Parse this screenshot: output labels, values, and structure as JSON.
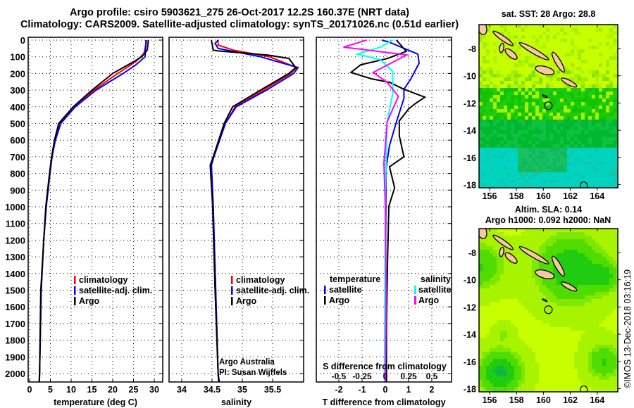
{
  "header": {
    "title_line1": "Argo profile: csiro 5903621_275 26-Oct-2017 12.2S 160.37E (NRT data)",
    "title_line2": "Climatology: CARS2009. Satellite-adjusted climatology: synTS_20171026.nc (0.51d earlier)"
  },
  "colors": {
    "argo": "#000000",
    "climatology": "#ff0000",
    "satellite": "#0000ff",
    "sal_satellite": "#00ffff",
    "sal_argo": "#ff00ff",
    "land": "#f8c8a0"
  },
  "chart_data": [
    {
      "type": "line",
      "title": "",
      "xlabel": "temperature (deg C)",
      "ylabel": "",
      "xlim": [
        -0.3,
        31.5
      ],
      "ylim": [
        2050,
        -17
      ],
      "xticks": [
        "0",
        "5",
        "10",
        "15",
        "20",
        "25",
        "30"
      ],
      "xtick_values": [
        0,
        5,
        10,
        15,
        20,
        25,
        30
      ],
      "yticks": [
        "0",
        "100",
        "200",
        "300",
        "400",
        "500",
        "600",
        "700",
        "800",
        "900",
        "1000",
        "1100",
        "1200",
        "1300",
        "1400",
        "1500",
        "1600",
        "1700",
        "1800",
        "1900",
        "2000"
      ],
      "ytick_values": [
        0,
        100,
        200,
        300,
        400,
        500,
        600,
        700,
        800,
        900,
        1000,
        1100,
        1200,
        1300,
        1400,
        1500,
        1600,
        1700,
        1800,
        1900,
        2000
      ],
      "grid": true,
      "legend_placement": "lower-right",
      "series": [
        {
          "name": "climatology",
          "color": "#ff0000",
          "points": [
            [
              0,
              28.2
            ],
            [
              80,
              27.5
            ],
            [
              130,
              25.5
            ],
            [
              200,
              21.2
            ],
            [
              300,
              15.5
            ],
            [
              400,
              10.5
            ],
            [
              500,
              7.2
            ],
            [
              600,
              6.1
            ],
            [
              700,
              5.4
            ],
            [
              800,
              4.9
            ],
            [
              1000,
              4.0
            ],
            [
              1200,
              3.4
            ],
            [
              1500,
              2.8
            ],
            [
              2000,
              2.4
            ],
            [
              2050,
              2.35
            ]
          ]
        },
        {
          "name": "satellite-adj. clim.",
          "color": "#0000ff",
          "points": [
            [
              0,
              28.0
            ],
            [
              100,
              27.8
            ],
            [
              150,
              25.5
            ],
            [
              200,
              22.5
            ],
            [
              300,
              16.0
            ],
            [
              400,
              11.0
            ],
            [
              500,
              7.5
            ],
            [
              600,
              6.2
            ],
            [
              700,
              5.4
            ],
            [
              800,
              4.9
            ],
            [
              1000,
              4.0
            ],
            [
              1200,
              3.4
            ],
            [
              1500,
              2.8
            ],
            [
              2000,
              2.4
            ],
            [
              2050,
              2.35
            ]
          ]
        },
        {
          "name": "Argo",
          "color": "#000000",
          "points": [
            [
              0,
              28.6
            ],
            [
              60,
              28.3
            ],
            [
              100,
              27.0
            ],
            [
              130,
              25.0
            ],
            [
              200,
              20.0
            ],
            [
              270,
              16.5
            ],
            [
              300,
              15.0
            ],
            [
              400,
              10.5
            ],
            [
              500,
              7.0
            ],
            [
              600,
              6.0
            ],
            [
              700,
              5.3
            ],
            [
              800,
              4.8
            ],
            [
              1000,
              3.9
            ],
            [
              1200,
              3.4
            ],
            [
              1500,
              2.7
            ],
            [
              2000,
              2.4
            ],
            [
              2050,
              2.3
            ]
          ]
        }
      ]
    },
    {
      "type": "line",
      "xlabel": "salinity",
      "xlim": [
        33.79,
        36.01
      ],
      "ylim": [
        2050,
        -17
      ],
      "xticks": [
        "34",
        "34.5",
        "35",
        "35.5"
      ],
      "xtick_values": [
        34,
        34.5,
        35,
        35.5
      ],
      "grid": true,
      "legend_placement": "lower-right",
      "annotation": [
        "Argo Australia",
        "PI: Susan Wijffels"
      ],
      "series": [
        {
          "name": "climatology",
          "color": "#ff0000",
          "points": [
            [
              0,
              34.6
            ],
            [
              30,
              34.6
            ],
            [
              60,
              34.85
            ],
            [
              100,
              35.45
            ],
            [
              165,
              35.9
            ],
            [
              200,
              35.8
            ],
            [
              300,
              35.35
            ],
            [
              400,
              34.88
            ],
            [
              500,
              34.72
            ],
            [
              700,
              34.53
            ],
            [
              750,
              34.49
            ],
            [
              1000,
              34.52
            ],
            [
              1500,
              34.56
            ],
            [
              2000,
              34.6
            ],
            [
              2050,
              34.61
            ]
          ]
        },
        {
          "name": "satellite-adj. clim.",
          "color": "#0000ff",
          "points": [
            [
              0,
              34.6
            ],
            [
              20,
              34.55
            ],
            [
              50,
              34.6
            ],
            [
              100,
              35.3
            ],
            [
              165,
              35.92
            ],
            [
              200,
              35.85
            ],
            [
              300,
              35.4
            ],
            [
              400,
              34.9
            ],
            [
              500,
              34.72
            ],
            [
              700,
              34.53
            ],
            [
              750,
              34.49
            ],
            [
              1000,
              34.52
            ],
            [
              1500,
              34.56
            ],
            [
              2000,
              34.6
            ],
            [
              2050,
              34.61
            ]
          ]
        },
        {
          "name": "Argo",
          "color": "#000000",
          "points": [
            [
              0,
              34.49
            ],
            [
              60,
              34.52
            ],
            [
              65,
              34.6
            ],
            [
              90,
              35.42
            ],
            [
              110,
              35.77
            ],
            [
              165,
              35.88
            ],
            [
              200,
              35.77
            ],
            [
              300,
              35.3
            ],
            [
              400,
              34.84
            ],
            [
              500,
              34.7
            ],
            [
              700,
              34.52
            ],
            [
              750,
              34.47
            ],
            [
              1000,
              34.51
            ],
            [
              1500,
              34.55
            ],
            [
              2000,
              34.6
            ],
            [
              2050,
              34.62
            ]
          ]
        }
      ]
    },
    {
      "type": "line",
      "xlabel": "T difference from climatology",
      "xlabel_inner": "S difference from climatology",
      "xlim": [
        -2.97,
        2.85
      ],
      "ylim": [
        2050,
        -17
      ],
      "xticks": [
        "-2",
        "-1",
        "0",
        "1",
        "2"
      ],
      "xtick_values": [
        -2,
        -1,
        0,
        1,
        2
      ],
      "sticks": [
        "-0.5",
        "-0.25",
        "0",
        "0.25",
        "0.5"
      ],
      "stick_values": [
        -0.5,
        -0.25,
        0,
        0.25,
        0.5
      ],
      "grid": true,
      "legend_titles": [
        "temperature",
        "salinity"
      ],
      "series": [
        {
          "name": "satellite",
          "group": "temperature",
          "color": "#0000ff",
          "points": [
            [
              0,
              -0.15
            ],
            [
              13,
              0.18
            ],
            [
              84,
              1.4
            ],
            [
              139,
              1.45
            ],
            [
              232,
              1.1
            ],
            [
              295,
              0.8
            ],
            [
              350,
              0.8
            ],
            [
              490,
              0.48
            ],
            [
              633,
              0.18
            ],
            [
              772,
              0.03
            ],
            [
              1000,
              0.02
            ],
            [
              2050,
              0.0
            ]
          ]
        },
        {
          "name": "Argo",
          "group": "temperature",
          "color": "#000000",
          "points": [
            [
              0,
              0.48
            ],
            [
              67,
              0.9
            ],
            [
              110,
              0.1
            ],
            [
              148,
              -1.06
            ],
            [
              194,
              -1.48
            ],
            [
              232,
              -0.6
            ],
            [
              253,
              0.18
            ],
            [
              295,
              0.8
            ],
            [
              342,
              1.7
            ],
            [
              380,
              1.3
            ],
            [
              413,
              1.0
            ],
            [
              485,
              0.6
            ],
            [
              574,
              0.6
            ],
            [
              700,
              0.8
            ],
            [
              760,
              0.18
            ],
            [
              886,
              0.4
            ],
            [
              996,
              0.15
            ],
            [
              1300,
              0.1
            ],
            [
              1700,
              0.05
            ],
            [
              2050,
              0.05
            ]
          ]
        },
        {
          "name": "satellite",
          "group": "salinity",
          "color": "#00ffff",
          "points": [
            [
              0,
              0.08
            ],
            [
              42,
              -0.05
            ],
            [
              84,
              -0.3
            ],
            [
              118,
              -0.05
            ],
            [
              190,
              0.08
            ],
            [
              320,
              0.08
            ],
            [
              490,
              0.02
            ],
            [
              910,
              0.0
            ],
            [
              1500,
              -0.005
            ],
            [
              2050,
              -0.01
            ]
          ]
        },
        {
          "name": "Argo",
          "group": "salinity",
          "color": "#ff00ff",
          "points": [
            [
              0,
              -0.2
            ],
            [
              42,
              -0.45
            ],
            [
              89,
              0.23
            ],
            [
              194,
              -0.13
            ],
            [
              253,
              0.02
            ],
            [
              338,
              0.14
            ],
            [
              490,
              0.02
            ],
            [
              738,
              -0.015
            ],
            [
              1000,
              0.0
            ],
            [
              1500,
              0.01
            ],
            [
              2050,
              0.0
            ]
          ]
        }
      ]
    }
  ],
  "maps": {
    "sst": {
      "title": "sat. SST: 28 Argo: 28.8",
      "sat_sst": 28,
      "argo_sst": 28.8
    },
    "sla": {
      "title_line1": "Altim. SLA: 0.14",
      "title_line2": "Argo h1000: 0.092 h2000: NaN",
      "sla": 0.14
    },
    "lon_ticks": [
      "156",
      "158",
      "160",
      "162",
      "164"
    ],
    "lon_values": [
      156,
      158,
      160,
      162,
      164
    ],
    "lat_ticks": [
      "-8",
      "-10",
      "-12",
      "-14",
      "-16",
      "-18"
    ],
    "lat_values": [
      -8,
      -10,
      -12,
      -14,
      -16,
      -18
    ],
    "argo_position": {
      "lon": 160.37,
      "lat": -12.2
    }
  },
  "footer": {
    "copyright": "©IMOS 13-Dec-2018 03:16:19"
  }
}
